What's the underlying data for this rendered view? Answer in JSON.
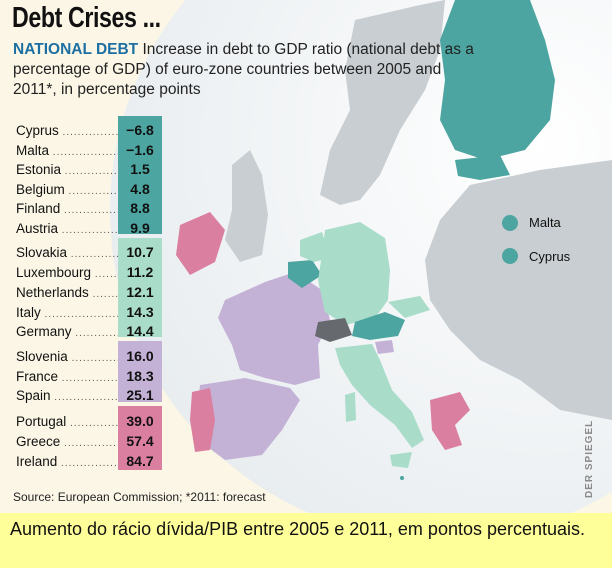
{
  "title": "Debt Crises ...",
  "description": {
    "head": "NATIONAL DEBT",
    "text": " Increase in debt to GDP ratio (national debt as a percentage of GDP) of euro-zone countries between 2005 and 2011*, in percentage points"
  },
  "groups": [
    {
      "color": "#4ca5a0",
      "rows": [
        {
          "country": "Cyprus",
          "value": "−6.8"
        },
        {
          "country": "Malta",
          "value": "−1.6"
        },
        {
          "country": "Estonia",
          "value": "1.5"
        },
        {
          "country": "Belgium",
          "value": "4.8"
        },
        {
          "country": "Finland",
          "value": "8.8"
        },
        {
          "country": "Austria",
          "value": "9.9"
        }
      ]
    },
    {
      "color": "#a9dcc9",
      "rows": [
        {
          "country": "Slovakia",
          "value": "10.7"
        },
        {
          "country": "Luxembourg",
          "value": "11.2"
        },
        {
          "country": "Netherlands",
          "value": "12.1"
        },
        {
          "country": "Italy",
          "value": "14.3"
        },
        {
          "country": "Germany",
          "value": "14.4"
        }
      ]
    },
    {
      "color": "#c4b2d6",
      "rows": [
        {
          "country": "Slovenia",
          "value": "16.0"
        },
        {
          "country": "France",
          "value": "18.3"
        },
        {
          "country": "Spain",
          "value": "25.1"
        }
      ]
    },
    {
      "color": "#db7fa0",
      "rows": [
        {
          "country": "Portugal",
          "value": "39.0"
        },
        {
          "country": "Greece",
          "value": "57.4"
        },
        {
          "country": "Ireland",
          "value": "84.7"
        }
      ]
    }
  ],
  "legend": [
    {
      "label": "Malta",
      "color": "#4ca5a0"
    },
    {
      "label": "Cyprus",
      "color": "#4ca5a0"
    }
  ],
  "source": "Source: European Commission; *2011: forecast",
  "credit": "DER SPIEGEL",
  "caption": "Aumento do rácio dívida/PIB entre 2005 e 2011, em pontos percentuais.",
  "colors": {
    "teal": "#4ca5a0",
    "mint": "#a9dcc9",
    "lavender": "#c4b2d6",
    "pink": "#db7fa0",
    "non_eurozone": "#e8e6e0",
    "other": "#c9ced2",
    "caption_bg": "#ffff99"
  }
}
